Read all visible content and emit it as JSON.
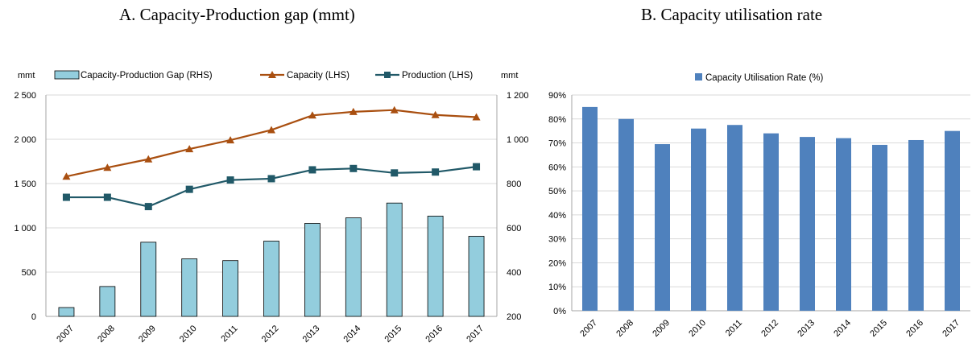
{
  "panel_a": {
    "title": "A. Capacity-Production gap (mmt)"
  },
  "panel_b": {
    "title": "B. Capacity utilisation rate"
  },
  "chart_data": [
    {
      "type": "bar+line",
      "title": "A. Capacity-Production gap (mmt)",
      "ylabel_left": "mmt",
      "ylabel_right": "mmt",
      "categories": [
        "2007",
        "2008",
        "2009",
        "2010",
        "2011",
        "2012",
        "2013",
        "2014",
        "2015",
        "2016",
        "2017"
      ],
      "series": [
        {
          "name": "Capacity-Production Gap (RHS)",
          "kind": "bar",
          "axis": "right",
          "color": "#93cddd",
          "values": [
            240,
            335,
            535,
            460,
            452,
            540,
            620,
            645,
            712,
            653,
            562
          ]
        },
        {
          "name": "Capacity (LHS)",
          "kind": "line",
          "marker": "triangle",
          "axis": "left",
          "color": "#a94f10",
          "values": [
            1580,
            1680,
            1775,
            1890,
            1990,
            2105,
            2270,
            2310,
            2330,
            2275,
            2250
          ]
        },
        {
          "name": "Production (LHS)",
          "kind": "line",
          "marker": "square",
          "axis": "left",
          "color": "#215968",
          "values": [
            1345,
            1345,
            1240,
            1435,
            1540,
            1555,
            1655,
            1670,
            1620,
            1630,
            1690
          ]
        }
      ],
      "ylim_left": [
        0,
        2500
      ],
      "yticks_left": [
        0,
        500,
        1000,
        1500,
        2000,
        2500
      ],
      "yticklabels_left": [
        "0",
        "500",
        "1 000",
        "1 500",
        "2 000",
        "2 500"
      ],
      "ylim_right": [
        200,
        1200
      ],
      "yticks_right": [
        200,
        400,
        600,
        800,
        1000,
        1200
      ],
      "yticklabels_right": [
        "200",
        "400",
        "600",
        "800",
        "1 000",
        "1 200"
      ],
      "grid": true,
      "legend_position": "top"
    },
    {
      "type": "bar",
      "title": "B. Capacity utilisation rate",
      "categories": [
        "2007",
        "2008",
        "2009",
        "2010",
        "2011",
        "2012",
        "2013",
        "2014",
        "2015",
        "2016",
        "2017"
      ],
      "series": [
        {
          "name": "Capacity Utilisation Rate (%)",
          "color": "#4f81bd",
          "values": [
            85,
            80,
            69.5,
            76,
            77.5,
            74,
            72.5,
            72,
            69.2,
            71.2,
            75
          ]
        }
      ],
      "ylim": [
        0,
        90
      ],
      "yticks": [
        0,
        10,
        20,
        30,
        40,
        50,
        60,
        70,
        80,
        90
      ],
      "yticklabels": [
        "0%",
        "10%",
        "20%",
        "30%",
        "40%",
        "50%",
        "60%",
        "70%",
        "80%",
        "90%"
      ],
      "grid": true,
      "legend_position": "top"
    }
  ]
}
